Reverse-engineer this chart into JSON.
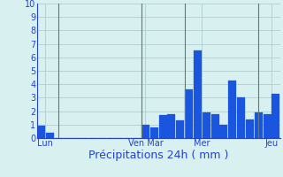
{
  "title": "",
  "xlabel": "Précipitations 24h ( mm )",
  "background_color": "#d8f0f0",
  "bar_color": "#1a55e0",
  "bar_edge_color": "#1a55e0",
  "grid_color": "#a8c8c8",
  "ylim": [
    0,
    10
  ],
  "yticks": [
    0,
    1,
    2,
    3,
    4,
    5,
    6,
    7,
    8,
    9,
    10
  ],
  "day_labels": [
    "Lun",
    "Ven Mar",
    "Mer",
    "Jeu"
  ],
  "values": [
    0.9,
    0.4,
    0.0,
    0.0,
    0.0,
    0.0,
    0.0,
    0.0,
    0.0,
    0.0,
    0.0,
    0.0,
    1.0,
    0.8,
    1.7,
    1.8,
    1.3,
    3.6,
    6.5,
    1.9,
    1.8,
    1.0,
    4.3,
    3.0,
    1.4,
    1.9,
    1.8,
    3.3
  ],
  "vline_color": "#607878",
  "xlabel_color": "#2244cc",
  "tick_color": "#2244cc",
  "ylabel_fontsize": 7,
  "xlabel_fontsize": 9
}
